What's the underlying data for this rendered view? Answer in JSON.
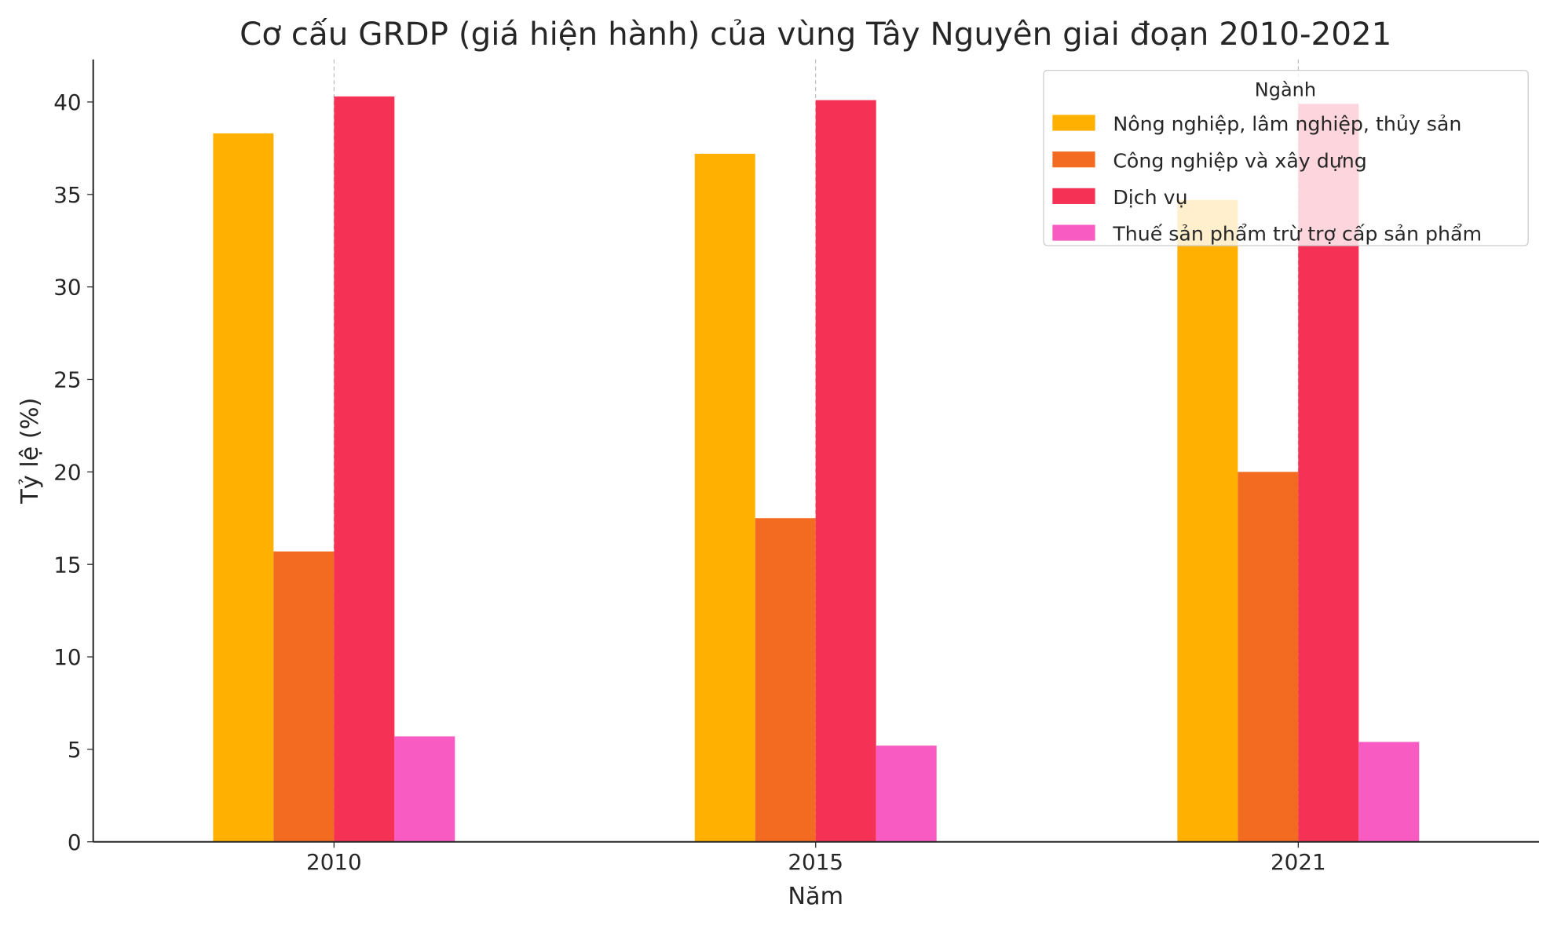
{
  "chart_data": {
    "type": "bar",
    "title": "Cơ cấu GRDP (giá hiện hành) của vùng Tây Nguyên giai đoạn 2010-2021",
    "xlabel": "Năm",
    "ylabel": "Tỷ lệ (%)",
    "categories": [
      "2010",
      "2015",
      "2021"
    ],
    "ylim": [
      0,
      42.3
    ],
    "yticks": [
      0,
      5,
      10,
      15,
      20,
      25,
      30,
      35,
      40
    ],
    "grid": "vertical dashed at category ticks",
    "legend": {
      "title": "Ngành",
      "placement": "top-right"
    },
    "series": [
      {
        "name": "Nông nghiệp, lâm nghiệp, thủy sản",
        "color": "#FFB000",
        "values": [
          38.3,
          37.2,
          34.7
        ]
      },
      {
        "name": "Công nghiệp và xây dựng",
        "color": "#F26B21",
        "values": [
          15.7,
          17.5,
          20.0
        ]
      },
      {
        "name": "Dịch vụ",
        "color": "#F53255",
        "values": [
          40.3,
          40.1,
          39.9
        ]
      },
      {
        "name": "Thuế sản phẩm trừ trợ cấp sản phẩm",
        "color": "#F85BC1",
        "values": [
          5.7,
          5.2,
          5.4
        ]
      }
    ]
  }
}
